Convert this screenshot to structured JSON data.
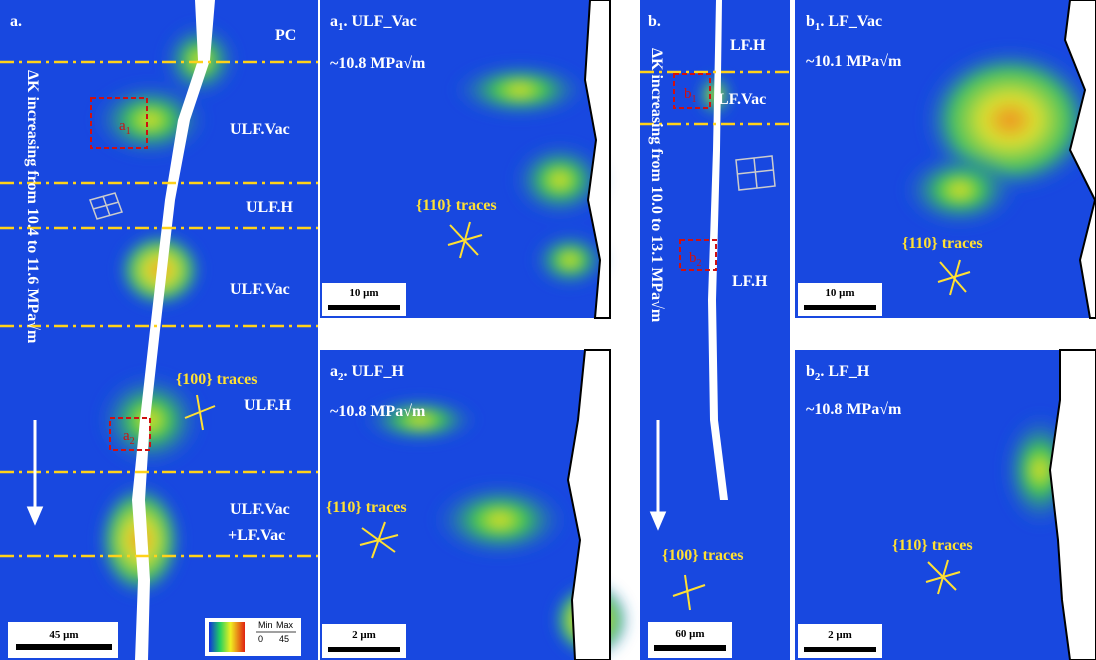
{
  "panel_a": {
    "label": "a.",
    "corner": "PC",
    "zones": [
      "ULF.Vac",
      "ULF.H",
      "ULF.Vac",
      "ULF.H",
      "ULF.Vac",
      "+LF.Vac"
    ],
    "traces": "{100} traces",
    "direction": "ΔK increasing from 10.4 to 11.6 MPa√m",
    "scale": "45 μm",
    "boxes": [
      {
        "letter": "a",
        "sub": "1"
      },
      {
        "letter": "a",
        "sub": "2"
      }
    ],
    "colorbar": {
      "min_label": "Min",
      "max_label": "Max",
      "min": "0",
      "max": "45"
    }
  },
  "panel_a1": {
    "letter": "a",
    "sub": "1",
    "rest": ". ULF_Vac",
    "k": "~10.8 MPa√m",
    "traces": "{110} traces",
    "scale": "10 μm"
  },
  "panel_a2": {
    "letter": "a",
    "sub": "2",
    "rest": ". ULF_H",
    "k": "~10.8 MPa√m",
    "traces": "{110} traces",
    "scale": "2 μm"
  },
  "panel_b": {
    "label": "b.",
    "zones": [
      "LF.H",
      "LF.Vac",
      "LF.H"
    ],
    "traces": "{100} traces",
    "direction": "ΔK increasing from 10.0 to 13.1 MPa√m",
    "scale": "60 μm",
    "boxes": [
      {
        "letter": "b",
        "sub": "1"
      },
      {
        "letter": "b",
        "sub": "2"
      }
    ]
  },
  "panel_b1": {
    "letter": "b",
    "sub": "1",
    "rest": ". LF_Vac",
    "k": "~10.1 MPa√m",
    "traces": "{110} traces",
    "scale": "10 μm"
  },
  "panel_b2": {
    "letter": "b",
    "sub": "2",
    "rest": ". LF_H",
    "k": "~10.8 MPa√m",
    "traces": "{110} traces",
    "scale": "2 μm"
  }
}
